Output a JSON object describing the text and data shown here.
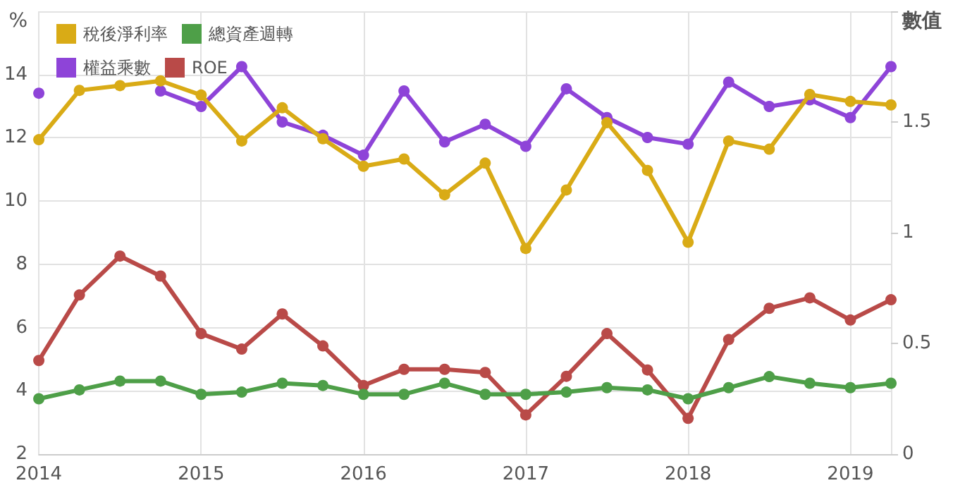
{
  "chart_data": {
    "type": "line",
    "ylabel": "%",
    "y2label": "數值",
    "x": [
      2014,
      2014.25,
      2014.5,
      2014.75,
      2015,
      2015.25,
      2015.5,
      2015.75,
      2016,
      2016.25,
      2016.5,
      2016.75,
      2017,
      2017.25,
      2017.5,
      2017.75,
      2018,
      2018.25,
      2018.5,
      2018.75,
      2019,
      2019.25
    ],
    "series": [
      {
        "name": "稅後淨利率",
        "color": "#d9ab16",
        "values": [
          11.94,
          13.5,
          13.65,
          13.8,
          13.35,
          11.9,
          12.95,
          11.97,
          11.1,
          11.33,
          10.2,
          11.2,
          8.5,
          10.35,
          12.48,
          10.97,
          8.7,
          11.9,
          11.64,
          13.37,
          13.15,
          13.04
        ]
      },
      {
        "name": "總資產週轉",
        "color": "#4e9f48",
        "axis": "y2",
        "values": [
          0.25,
          0.29,
          0.33,
          0.33,
          0.27,
          0.28,
          0.32,
          0.31,
          0.27,
          0.27,
          0.32,
          0.27,
          0.27,
          0.28,
          0.3,
          0.29,
          0.25,
          0.3,
          0.35,
          0.32,
          0.3,
          0.32
        ]
      },
      {
        "name": "權益乘數",
        "color": "#8e44d8",
        "axis": "y2",
        "values": [
          1.63,
          null,
          null,
          1.64,
          1.57,
          1.75,
          1.5,
          1.44,
          1.35,
          1.64,
          1.41,
          1.49,
          1.39,
          1.65,
          1.52,
          1.43,
          1.4,
          1.68,
          1.57,
          1.6,
          1.52,
          1.75
        ]
      },
      {
        "name": "ROE",
        "color": "#b94a48",
        "values": [
          4.96,
          7.03,
          8.26,
          7.63,
          5.81,
          5.32,
          6.43,
          5.42,
          4.17,
          4.68,
          4.68,
          4.58,
          3.24,
          4.46,
          5.81,
          4.66,
          3.13,
          5.62,
          6.61,
          6.94,
          6.24,
          6.88
        ]
      }
    ],
    "xlim": [
      2014,
      2019.25
    ],
    "xticks": [
      2014,
      2015,
      2016,
      2017,
      2018,
      2019
    ],
    "ylim": [
      2,
      16
    ],
    "yticks": [
      2,
      4,
      6,
      8,
      10,
      12,
      14,
      {
        "value": 16,
        "label": null
      }
    ],
    "y2lim": [
      0,
      2
    ],
    "y2ticks": [
      0,
      0.5,
      1,
      1.5,
      {
        "value": 2,
        "label": null
      }
    ],
    "grid": true,
    "legend": "top left",
    "marker": "circle",
    "line_style": "solid"
  }
}
